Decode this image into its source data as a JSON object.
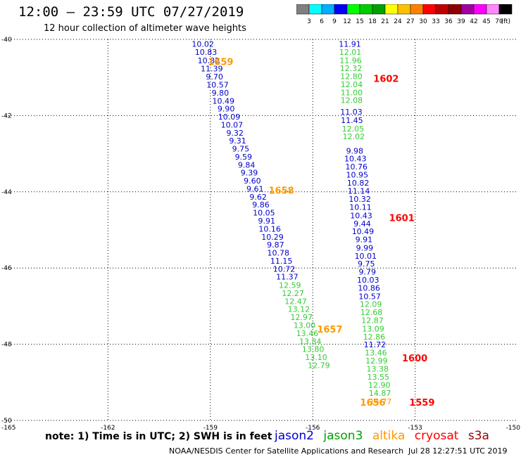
{
  "header": {
    "title": "12:00 – 23:59 UTC 07/27/2019",
    "subtitle": "12 hour collection of altimeter wave heights"
  },
  "colorbar": {
    "colors": [
      "#808080",
      "#00ffff",
      "#00b0ff",
      "#0000ff",
      "#00ff00",
      "#00cc00",
      "#00a000",
      "#ffff00",
      "#ffc000",
      "#ff8000",
      "#ff0000",
      "#c00000",
      "#900000",
      "#a000a0",
      "#ff00ff",
      "#ff88ff",
      "#000000"
    ],
    "labels": [
      "3",
      "6",
      "9",
      "12",
      "15",
      "18",
      "21",
      "24",
      "27",
      "30",
      "33",
      "36",
      "39",
      "42",
      "45",
      "70"
    ],
    "unit": "(ft)"
  },
  "footer": {
    "note": "note:  1) Time is in UTC;  2) SWH is in feet",
    "legend": [
      {
        "name": "jason2",
        "color": "#0000cc"
      },
      {
        "name": "jason3",
        "color": "#00a000"
      },
      {
        "name": "altika",
        "color": "#ff9900"
      },
      {
        "name": "cryosat",
        "color": "#ff0000"
      },
      {
        "name": "s3a",
        "color": "#990000"
      }
    ],
    "credit": "NOAA/NESDIS Center for Satellite Applications and Research",
    "timestamp": "Jul 28 12:27:51 UTC 2019"
  },
  "chart_data": {
    "type": "scatter",
    "xlim": [
      -165,
      -150
    ],
    "ylim": [
      -50,
      -40
    ],
    "xticks": [
      -165,
      -162,
      -159,
      -156,
      -153,
      -150
    ],
    "yticks": [
      -40,
      -42,
      -44,
      -46,
      -48,
      -50
    ],
    "xtick_labels": [
      "-165",
      "-162",
      "-159",
      "-156",
      "-153",
      "-150"
    ],
    "ytick_labels": [
      "-40",
      "-42",
      "-44",
      "-46",
      "-48",
      "-50"
    ],
    "grid": true,
    "series": [
      {
        "name": "jason2",
        "color": "#0000cc",
        "points": [
          [
            -159.22,
            -40.12,
            "10.02"
          ],
          [
            -159.13,
            -40.33,
            "10.83"
          ],
          [
            -159.05,
            -40.55,
            "10.82"
          ],
          [
            -158.96,
            -40.77,
            "11.39"
          ],
          [
            -158.88,
            -40.98,
            "9.70"
          ],
          [
            -158.79,
            -41.19,
            "10.57"
          ],
          [
            -158.71,
            -41.4,
            "9.80"
          ],
          [
            -158.62,
            -41.61,
            "10.49"
          ],
          [
            -158.54,
            -41.82,
            "9.90"
          ],
          [
            -158.45,
            -42.03,
            "10.09"
          ],
          [
            -158.37,
            -42.24,
            "10.07"
          ],
          [
            -158.28,
            -42.45,
            "9.32"
          ],
          [
            -158.2,
            -42.66,
            "9.31"
          ],
          [
            -158.11,
            -42.87,
            "9.75"
          ],
          [
            -158.03,
            -43.08,
            "9.59"
          ],
          [
            -157.94,
            -43.29,
            "9.84"
          ],
          [
            -157.86,
            -43.5,
            "9.39"
          ],
          [
            -157.77,
            -43.71,
            "9.60"
          ],
          [
            -157.69,
            -43.92,
            "9.61"
          ],
          [
            -157.6,
            -44.13,
            "9.62"
          ],
          [
            -157.52,
            -44.34,
            "9.86"
          ],
          [
            -157.43,
            -44.55,
            "10.05"
          ],
          [
            -157.35,
            -44.76,
            "9.91"
          ],
          [
            -157.26,
            -44.97,
            "10.16"
          ],
          [
            -157.18,
            -45.18,
            "10.29"
          ],
          [
            -157.09,
            -45.39,
            "9.87"
          ],
          [
            -157.01,
            -45.6,
            "10.78"
          ],
          [
            -156.92,
            -45.81,
            "11.15"
          ],
          [
            -156.84,
            -46.02,
            "10.72"
          ],
          [
            -156.75,
            -46.23,
            "11.37"
          ],
          [
            -154.91,
            -40.12,
            "11.91"
          ],
          [
            -154.87,
            -41.9,
            "11.03"
          ],
          [
            -154.85,
            -42.12,
            "11.45"
          ],
          [
            -154.77,
            -42.92,
            "9.98"
          ],
          [
            -154.75,
            -43.13,
            "10.43"
          ],
          [
            -154.72,
            -43.34,
            "10.76"
          ],
          [
            -154.7,
            -43.55,
            "10.95"
          ],
          [
            -154.67,
            -43.76,
            "10.82"
          ],
          [
            -154.65,
            -43.98,
            "11.14"
          ],
          [
            -154.62,
            -44.19,
            "10.32"
          ],
          [
            -154.6,
            -44.4,
            "10.11"
          ],
          [
            -154.58,
            -44.62,
            "10.43"
          ],
          [
            -154.55,
            -44.83,
            "9.44"
          ],
          [
            -154.53,
            -45.04,
            "10.49"
          ],
          [
            -154.5,
            -45.25,
            "9.91"
          ],
          [
            -154.48,
            -45.47,
            "9.99"
          ],
          [
            -154.45,
            -45.68,
            "10.01"
          ],
          [
            -154.43,
            -45.89,
            "9.75"
          ],
          [
            -154.4,
            -46.1,
            "9.79"
          ],
          [
            -154.38,
            -46.31,
            "10.03"
          ],
          [
            -154.35,
            -46.52,
            "10.86"
          ],
          [
            -154.33,
            -46.74,
            "10.57"
          ],
          [
            -154.18,
            -48.01,
            "11.72"
          ]
        ]
      },
      {
        "name": "jason3",
        "color": "#33cc33",
        "points": [
          [
            -156.67,
            -46.45,
            "12.59"
          ],
          [
            -156.58,
            -46.66,
            "12.27"
          ],
          [
            -156.5,
            -46.87,
            "12.47"
          ],
          [
            -156.41,
            -47.08,
            "13.12"
          ],
          [
            -156.33,
            -47.29,
            "12.97"
          ],
          [
            -156.24,
            -47.5,
            "13.00"
          ],
          [
            -156.16,
            -47.71,
            "13.46"
          ],
          [
            -156.07,
            -47.92,
            "13.84"
          ],
          [
            -155.99,
            -48.13,
            "13.80"
          ],
          [
            -155.9,
            -48.34,
            "13.10"
          ],
          [
            -155.82,
            -48.55,
            "12.79"
          ],
          [
            -154.9,
            -40.33,
            "12.01"
          ],
          [
            -154.89,
            -40.55,
            "11.96"
          ],
          [
            -154.88,
            -40.76,
            "12.32"
          ],
          [
            -154.87,
            -40.97,
            "12.80"
          ],
          [
            -154.86,
            -41.18,
            "12.04"
          ],
          [
            -154.86,
            -41.39,
            "11.00"
          ],
          [
            -154.86,
            -41.6,
            "12.08"
          ],
          [
            -154.82,
            -42.34,
            "12.05"
          ],
          [
            -154.8,
            -42.55,
            "12.02"
          ],
          [
            -154.3,
            -46.95,
            "12.09"
          ],
          [
            -154.28,
            -47.16,
            "12.68"
          ],
          [
            -154.25,
            -47.37,
            "12.87"
          ],
          [
            -154.23,
            -47.59,
            "13.09"
          ],
          [
            -154.2,
            -47.8,
            "12.86"
          ],
          [
            -154.15,
            -48.22,
            "13.46"
          ],
          [
            -154.13,
            -48.43,
            "12.99"
          ],
          [
            -154.1,
            -48.64,
            "13.38"
          ],
          [
            -154.08,
            -48.86,
            "13.55"
          ],
          [
            -154.05,
            -49.07,
            "12.90"
          ],
          [
            -154.03,
            -49.28,
            "14.87"
          ]
        ]
      },
      {
        "name": "altika",
        "color": "#ff9900",
        "points": [
          [
            -154.01,
            -49.5,
            "14.77"
          ]
        ]
      }
    ],
    "time_labels": [
      {
        "text": "1659",
        "x": -158.7,
        "y": -40.6,
        "color": "#ff9900"
      },
      {
        "text": "1658",
        "x": -156.92,
        "y": -43.98,
        "color": "#ff9900"
      },
      {
        "text": "1657",
        "x": -155.5,
        "y": -47.62,
        "color": "#ff9900"
      },
      {
        "text": "1656",
        "x": -154.24,
        "y": -49.54,
        "color": "#ff9900"
      },
      {
        "text": "1602",
        "x": -153.85,
        "y": -41.04,
        "color": "#ff0000"
      },
      {
        "text": "1601",
        "x": -153.39,
        "y": -44.7,
        "color": "#ff0000"
      },
      {
        "text": "1600",
        "x": -153.01,
        "y": -48.38,
        "color": "#ff0000"
      },
      {
        "text": "1559",
        "x": -152.8,
        "y": -49.54,
        "color": "#ff0000"
      }
    ]
  }
}
